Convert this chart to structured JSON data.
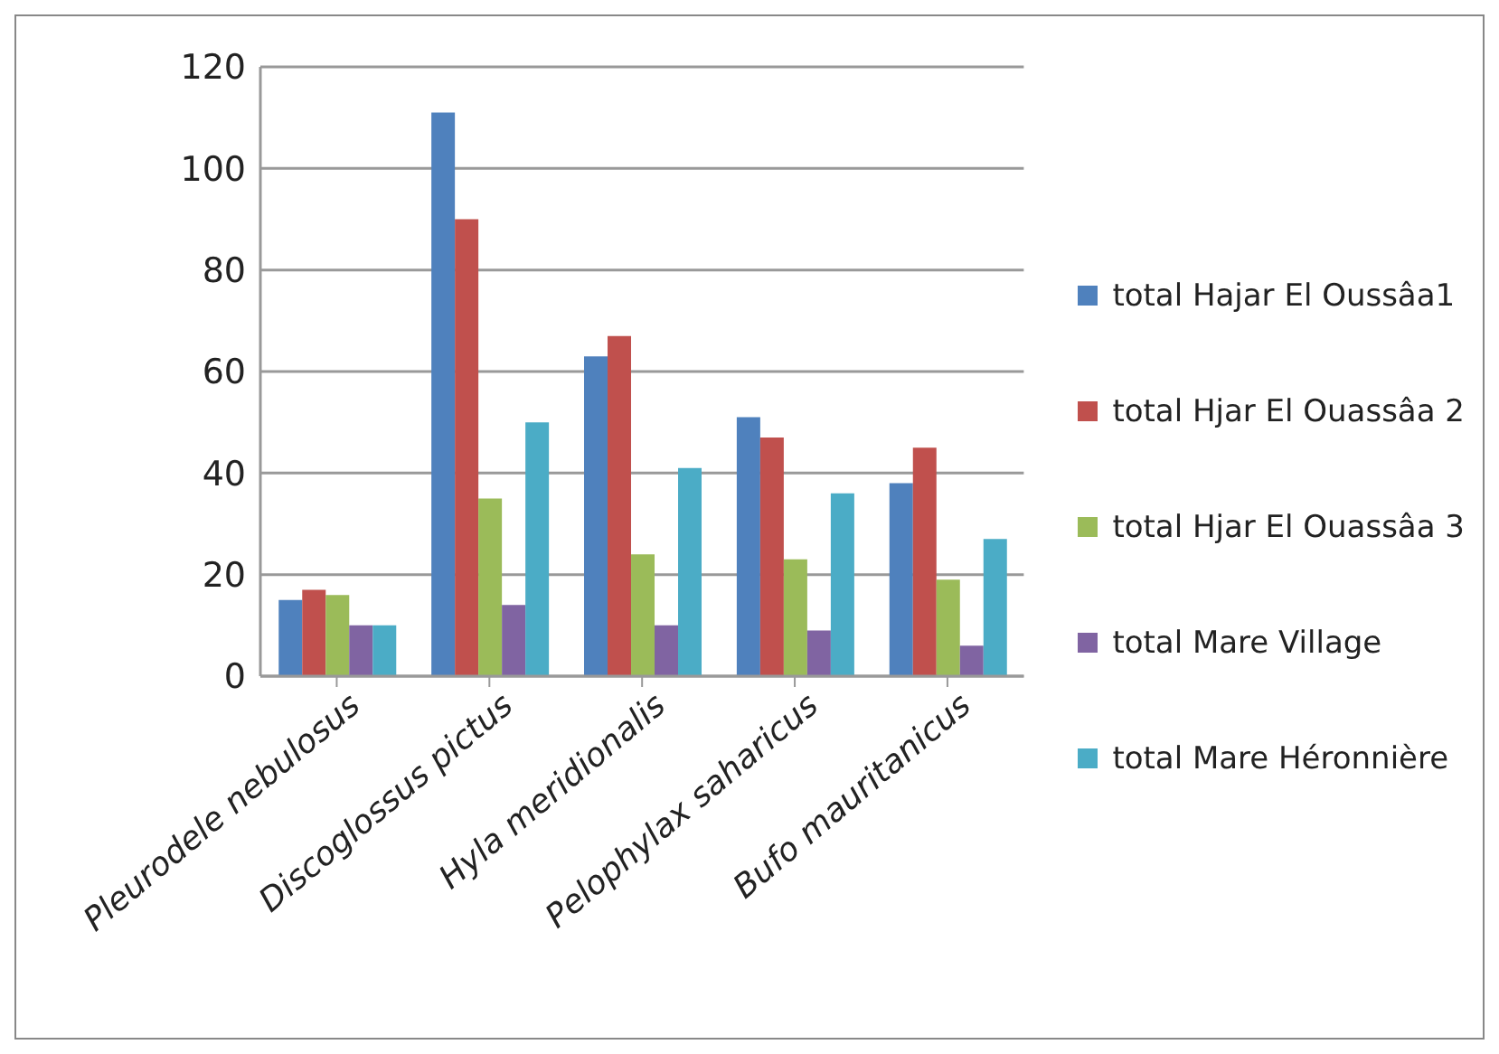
{
  "chart_data": {
    "type": "bar",
    "categories": [
      "Pleurodele nebulosus",
      "Discoglossus pictus",
      "Hyla meridionalis",
      "Pelophylax saharicus",
      "Bufo mauritanicus"
    ],
    "series": [
      {
        "name": "total Hajar El Oussâa1",
        "color": "#4f81bd",
        "values": [
          15,
          111,
          63,
          51,
          38
        ]
      },
      {
        "name": "total Hjar El Ouassâa 2",
        "color": "#c0504d",
        "values": [
          17,
          90,
          67,
          47,
          45
        ]
      },
      {
        "name": "total Hjar El Ouassâa 3",
        "color": "#9bbb59",
        "values": [
          16,
          35,
          24,
          23,
          19
        ]
      },
      {
        "name": "total Mare Village",
        "color": "#8064a2",
        "values": [
          10,
          14,
          10,
          9,
          6
        ]
      },
      {
        "name": "total Mare Héronnière",
        "color": "#4bacc6",
        "values": [
          10,
          50,
          41,
          36,
          27
        ]
      }
    ],
    "ylim": [
      0,
      120
    ],
    "yticks": [
      0,
      20,
      40,
      60,
      80,
      100,
      120
    ],
    "grid": "y",
    "legend": "right"
  }
}
